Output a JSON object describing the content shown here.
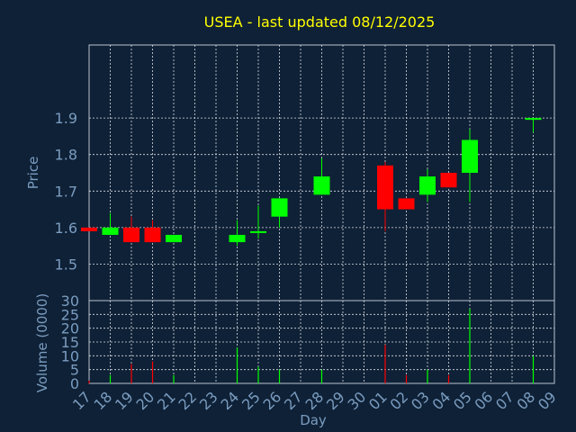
{
  "chart_data": {
    "type": "candlestick",
    "title": "USEA - last updated 08/12/2025",
    "xlabel": "Day",
    "ylabel_price": "Price",
    "ylabel_volume": "Volume (0000)",
    "price_ylim": [
      1.4,
      2.1
    ],
    "price_ticks": [
      "1.5",
      "1.6",
      "1.7",
      "1.8",
      "1.9"
    ],
    "volume_ylim": [
      0,
      30
    ],
    "volume_ticks": [
      "0",
      "5",
      "10",
      "15",
      "20",
      "25",
      "30"
    ],
    "grid": true,
    "x_ticks": [
      "17",
      "18",
      "19",
      "20",
      "21",
      "22",
      "23",
      "24",
      "25",
      "26",
      "27",
      "28",
      "29",
      "30",
      "01",
      "02",
      "03",
      "04",
      "05",
      "06",
      "07",
      "08",
      "09"
    ],
    "candles": [
      {
        "x": 0,
        "open": 1.6,
        "high": 1.6,
        "low": 1.59,
        "close": 1.59,
        "volume": 1
      },
      {
        "x": 1,
        "open": 1.58,
        "high": 1.64,
        "low": 1.58,
        "close": 1.6,
        "volume": 3
      },
      {
        "x": 2,
        "open": 1.6,
        "high": 1.63,
        "low": 1.56,
        "close": 1.56,
        "volume": 7
      },
      {
        "x": 3,
        "open": 1.6,
        "high": 1.62,
        "low": 1.56,
        "close": 1.56,
        "volume": 8
      },
      {
        "x": 4,
        "open": 1.56,
        "high": 1.58,
        "low": 1.56,
        "close": 1.58,
        "volume": 3
      },
      {
        "x": 7,
        "open": 1.56,
        "high": 1.62,
        "low": 1.55,
        "close": 1.58,
        "volume": 13
      },
      {
        "x": 8,
        "open": 1.59,
        "high": 1.66,
        "low": 1.57,
        "close": 1.59,
        "volume": 6
      },
      {
        "x": 9,
        "open": 1.63,
        "high": 1.68,
        "low": 1.6,
        "close": 1.68,
        "volume": 5
      },
      {
        "x": 11,
        "open": 1.69,
        "high": 1.79,
        "low": 1.69,
        "close": 1.74,
        "volume": 5
      },
      {
        "x": 14,
        "open": 1.77,
        "high": 1.78,
        "low": 1.59,
        "close": 1.65,
        "volume": 14
      },
      {
        "x": 15,
        "open": 1.68,
        "high": 1.68,
        "low": 1.65,
        "close": 1.65,
        "volume": 3
      },
      {
        "x": 16,
        "open": 1.69,
        "high": 1.76,
        "low": 1.67,
        "close": 1.74,
        "volume": 5
      },
      {
        "x": 17,
        "open": 1.75,
        "high": 1.75,
        "low": 1.71,
        "close": 1.71,
        "volume": 3
      },
      {
        "x": 18,
        "open": 1.75,
        "high": 1.87,
        "low": 1.67,
        "close": 1.84,
        "volume": 27
      },
      {
        "x": 21,
        "open": 1.9,
        "high": 1.9,
        "low": 1.86,
        "close": 1.9,
        "volume": 10
      }
    ],
    "colors": {
      "background": "#0f2136",
      "title": "#ffff00",
      "axis_text": "#7a9cc0",
      "plot_frame": "#b8c4d0",
      "grid": "#d8dee6",
      "up": "#00ff00",
      "down": "#ff0000"
    }
  }
}
